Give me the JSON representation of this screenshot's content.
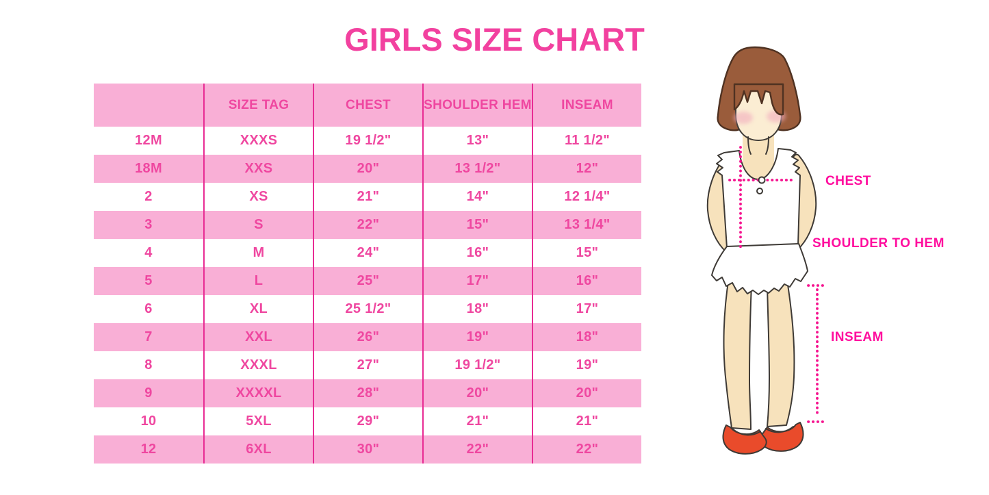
{
  "page": {
    "title": "GIRLS SIZE CHART"
  },
  "size_table": {
    "columns": [
      "",
      "SIZE TAG",
      "CHEST",
      "SHOULDER HEM",
      "INSEAM"
    ],
    "rows": [
      [
        "12M",
        "XXXS",
        "19 1/2\"",
        "13\"",
        "11 1/2\""
      ],
      [
        "18M",
        "XXS",
        "20\"",
        "13 1/2\"",
        "12\""
      ],
      [
        "2",
        "XS",
        "21\"",
        "14\"",
        "12 1/4\""
      ],
      [
        "3",
        "S",
        "22\"",
        "15\"",
        "13 1/4\""
      ],
      [
        "4",
        "M",
        "24\"",
        "16\"",
        "15\""
      ],
      [
        "5",
        "L",
        "25\"",
        "17\"",
        "16\""
      ],
      [
        "6",
        "XL",
        "25 1/2\"",
        "18\"",
        "17\""
      ],
      [
        "7",
        "XXL",
        "26\"",
        "19\"",
        "18\""
      ],
      [
        "8",
        "XXXL",
        "27\"",
        "19 1/2\"",
        "19\""
      ],
      [
        "9",
        "XXXXL",
        "28\"",
        "20\"",
        "20\""
      ],
      [
        "10",
        "5XL",
        "29\"",
        "21\"",
        "21\""
      ],
      [
        "12",
        "6XL",
        "30\"",
        "22\"",
        "22\""
      ]
    ]
  },
  "diagram": {
    "labels": {
      "chest": "CHEST",
      "shoulder_to_hem": "SHOULDER TO HEM",
      "inseam": "INSEAM"
    }
  },
  "colors": {
    "title_pink": "#F2419F",
    "table_text_pink": "#EF47A0",
    "row_pink": "#F9AFD6",
    "separator_pink": "#E82C94",
    "label_magenta": "#FF0D9E",
    "dot_pink": "#F5148F",
    "hair_brown": "#9A5C3B",
    "hair_outline": "#4F3222",
    "skin_face": "#FBEDD3",
    "skin_limb": "#F7E2BC",
    "blush_pink": "#F2ADBE",
    "shoe_red": "#E94B2B",
    "outline_dark": "#3E3A36"
  }
}
